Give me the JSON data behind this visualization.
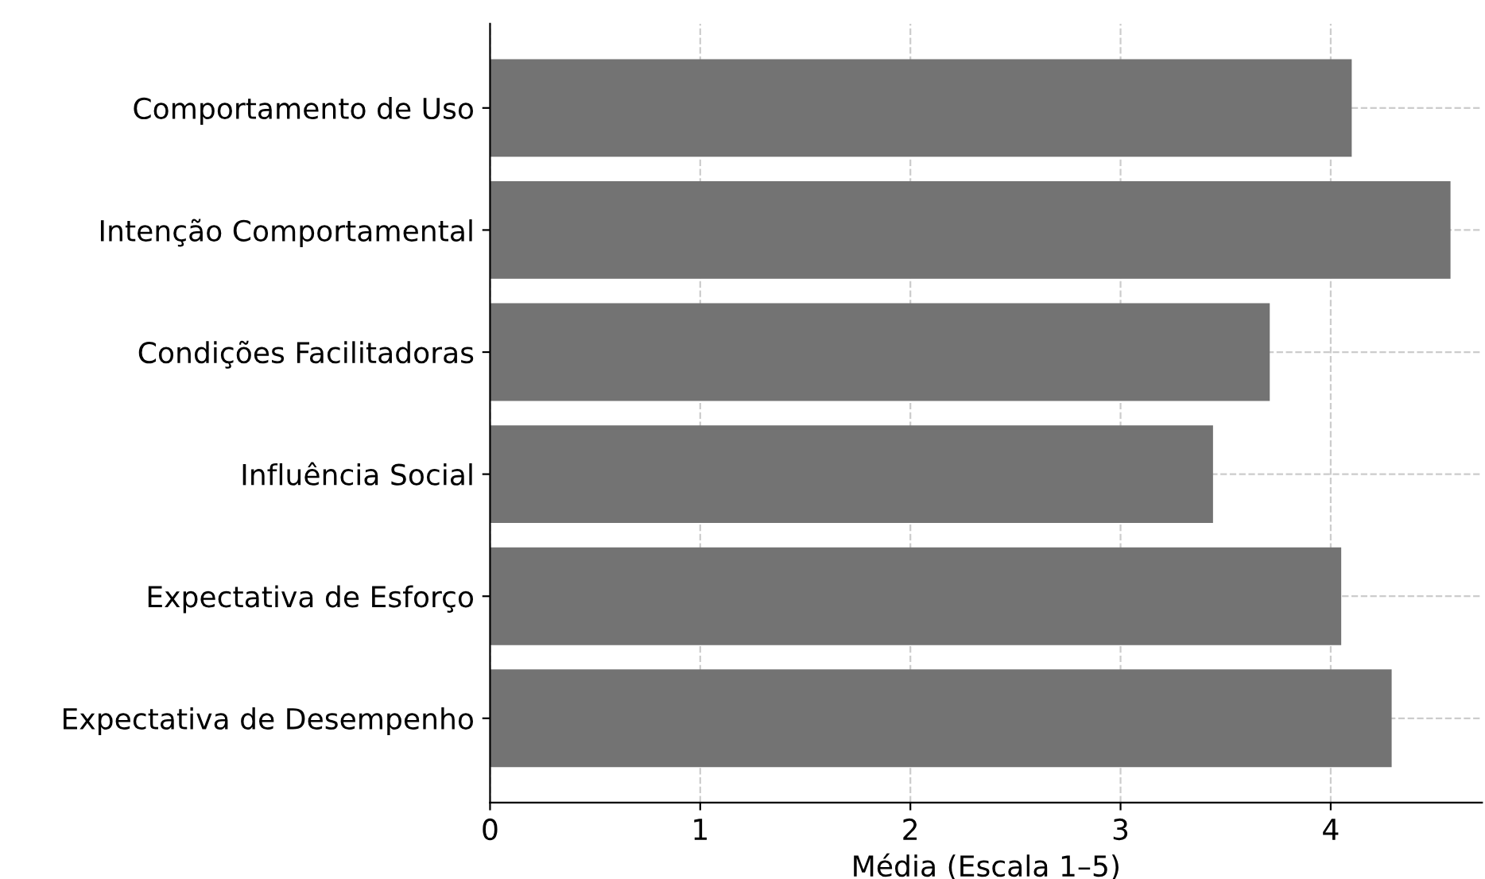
{
  "chart_data": {
    "type": "bar",
    "orientation": "horizontal",
    "xlabel": "Média (Escala 1–5)",
    "categories": [
      "Comportamento de Uso",
      "Intenção Comportamental",
      "Condições Facilitadoras",
      "Influência Social",
      "Expectativa de Esforço",
      "Expectativa de Desempenho"
    ],
    "values": [
      4.1,
      4.57,
      3.71,
      3.44,
      4.05,
      4.29
    ],
    "color": "#737373",
    "xlim": [
      0,
      4.72
    ],
    "xticks": [
      0,
      1,
      2,
      3,
      4
    ],
    "grid": true,
    "legend": false
  }
}
